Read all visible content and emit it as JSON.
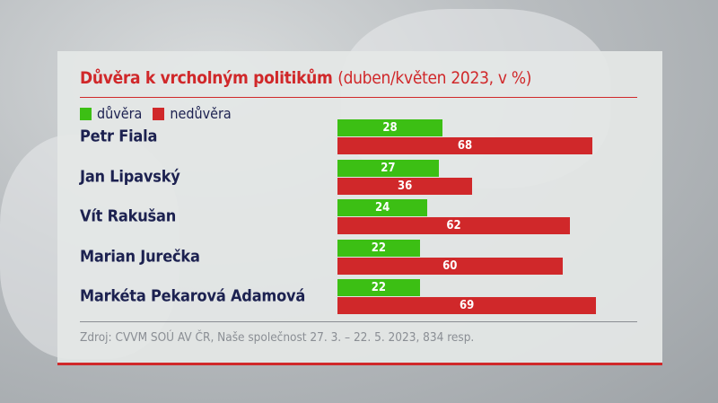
{
  "chart_data": {
    "type": "bar",
    "orientation": "horizontal",
    "title": "Důvěra k vrcholným politikům",
    "subtitle": "(duben/květen 2023, v %)",
    "categories": [
      "Petr Fiala",
      "Jan Lipavský",
      "Vít Rakušan",
      "Marian Jurečka",
      "Markéta Pekarová Adamová"
    ],
    "series": [
      {
        "name": "důvěra",
        "color": "#3cbf14",
        "values": [
          28,
          27,
          24,
          22,
          22
        ]
      },
      {
        "name": "nedůvěra",
        "color": "#d0282a",
        "values": [
          68,
          36,
          62,
          60,
          69
        ]
      }
    ],
    "legend": "top-left",
    "grid": false,
    "source": "Zdroj: CVVM SOÚ AV ČR, Naše společnost 27. 3. – 22. 5. 2023, 834 resp."
  }
}
